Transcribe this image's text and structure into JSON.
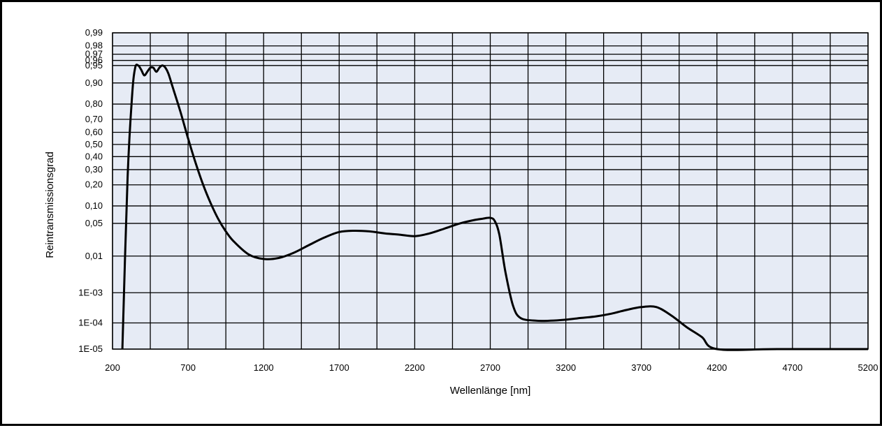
{
  "chart_data": {
    "type": "line",
    "title": "",
    "xlabel": "Wellenlänge [nm]",
    "ylabel": "Reintransmissionsgrad",
    "xlim": [
      200,
      5200
    ],
    "x_ticks": [
      "200",
      "700",
      "1200",
      "1700",
      "2200",
      "2700",
      "3200",
      "3700",
      "4200",
      "4700",
      "5200"
    ],
    "x_tick_values": [
      200,
      700,
      1200,
      1700,
      2200,
      2700,
      3200,
      3700,
      4200,
      4700,
      5200
    ],
    "y_ticks": [
      "0,99",
      "0,98",
      "0,97",
      "0,96",
      "0,95",
      "0,90",
      "0,80",
      "0,70",
      "0,60",
      "0,50",
      "0,40",
      "0,30",
      "0,20",
      "0,10",
      "0,05",
      "0,01",
      "1E-03",
      "1E-04",
      "1E-05"
    ],
    "y_tick_values": [
      0.99,
      0.98,
      0.97,
      0.96,
      0.95,
      0.9,
      0.8,
      0.7,
      0.6,
      0.5,
      0.4,
      0.3,
      0.2,
      0.1,
      0.05,
      0.01,
      0.001,
      0.0001,
      1e-05
    ],
    "y_scale": "probability (normal quantile)",
    "grid": true,
    "background_color": "#e6ebf5",
    "grid_color": "#000000",
    "line_color": "#000000",
    "series": [
      {
        "name": "",
        "x": [
          265,
          300,
          330,
          350,
          370,
          390,
          410,
          430,
          450,
          470,
          490,
          510,
          530,
          550,
          570,
          600,
          650,
          700,
          750,
          800,
          850,
          900,
          950,
          1000,
          1100,
          1200,
          1300,
          1400,
          1500,
          1600,
          1700,
          1800,
          1900,
          2000,
          2100,
          2200,
          2300,
          2400,
          2500,
          2600,
          2650,
          2700,
          2730,
          2760,
          2800,
          2850,
          2900,
          3000,
          3100,
          3200,
          3300,
          3400,
          3500,
          3600,
          3700,
          3800,
          3900,
          4000,
          4100,
          4200,
          4600,
          5200
        ],
        "y": [
          1e-05,
          0.25,
          0.85,
          0.945,
          0.95,
          0.94,
          0.925,
          0.935,
          0.945,
          0.945,
          0.935,
          0.945,
          0.95,
          0.945,
          0.93,
          0.88,
          0.75,
          0.55,
          0.35,
          0.2,
          0.11,
          0.06,
          0.035,
          0.022,
          0.011,
          0.0085,
          0.009,
          0.012,
          0.018,
          0.026,
          0.034,
          0.036,
          0.035,
          0.032,
          0.03,
          0.028,
          0.032,
          0.04,
          0.05,
          0.058,
          0.061,
          0.063,
          0.055,
          0.03,
          0.004,
          0.0004,
          0.00015,
          0.00012,
          0.00012,
          0.00013,
          0.00015,
          0.00017,
          0.00021,
          0.00028,
          0.00035,
          0.00035,
          0.00018,
          7e-05,
          3e-05,
          1e-05,
          1e-05,
          1e-05
        ]
      }
    ]
  }
}
